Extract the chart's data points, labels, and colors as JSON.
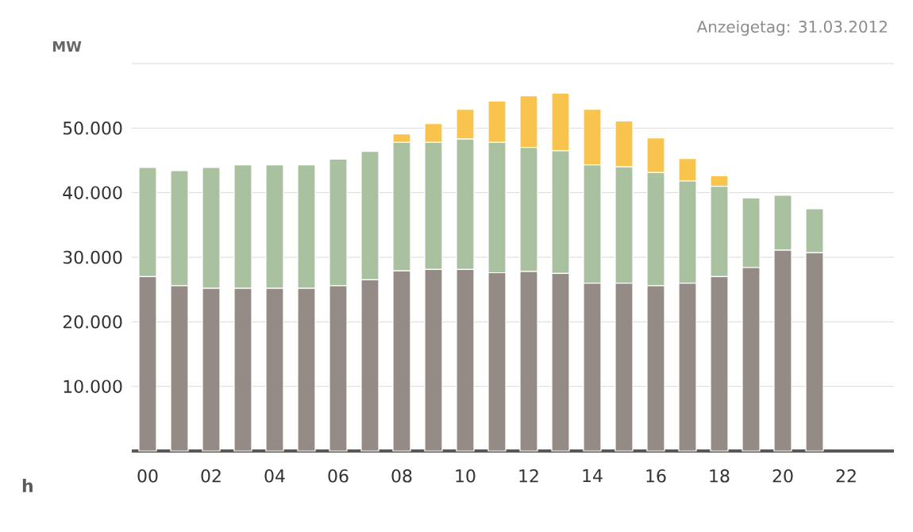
{
  "chart_data": {
    "type": "bar",
    "stacked": true,
    "subtitle": "Anzeigetag: 31.03.2012",
    "ylabel": "MW",
    "xlabel": "h",
    "categories": [
      "00",
      null,
      "02",
      null,
      "04",
      null,
      "06",
      null,
      "08",
      null,
      "10",
      null,
      "12",
      null,
      "14",
      null,
      "16",
      null,
      "18",
      null,
      "20",
      null,
      "22"
    ],
    "series": [
      {
        "color": "#948b87",
        "values": [
          27000,
          25600,
          25200,
          25200,
          25200,
          25200,
          25600,
          26500,
          27900,
          28100,
          28100,
          27600,
          27800,
          27500,
          26000,
          26000,
          25600,
          26000,
          27000,
          28400,
          31100,
          30700,
          null
        ]
      },
      {
        "color": "#a9c19f",
        "values": [
          16900,
          17800,
          18700,
          19100,
          19100,
          19100,
          19600,
          19900,
          19900,
          19700,
          20200,
          20200,
          19200,
          19000,
          18300,
          18000,
          17500,
          15800,
          14000,
          10800,
          8500,
          6800,
          null
        ]
      },
      {
        "color": "#f8c44e",
        "values": [
          null,
          null,
          null,
          null,
          null,
          null,
          null,
          null,
          1300,
          2900,
          4600,
          6400,
          8000,
          8900,
          8600,
          7100,
          5400,
          3500,
          1600,
          null,
          null,
          null,
          null
        ]
      }
    ],
    "ylim": [
      0,
      60000
    ],
    "yticks": [
      {
        "value": 10000,
        "label": "10.000"
      },
      {
        "value": 20000,
        "label": "20.000"
      },
      {
        "value": 30000,
        "label": "30.000"
      },
      {
        "value": 40000,
        "label": "40.000"
      },
      {
        "value": 50000,
        "label": "50.000"
      },
      {
        "value": 60000,
        "label": null
      }
    ],
    "grid": "y"
  }
}
